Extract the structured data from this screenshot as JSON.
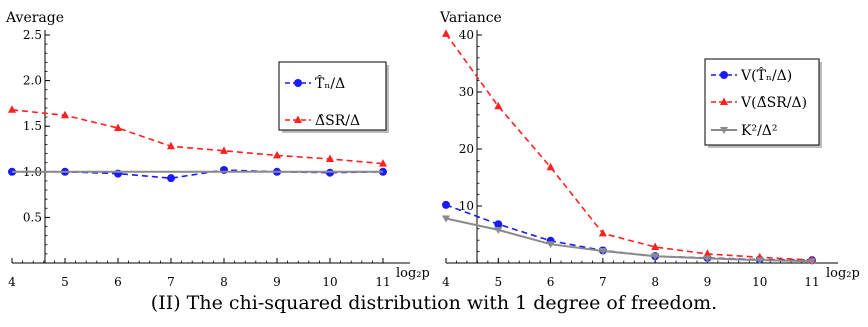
{
  "caption": "(II) The chi-squared distribution with 1 degree of freedom.",
  "chart_data": [
    {
      "type": "line",
      "title": "Average",
      "xlabel": "log₂p",
      "ylabel": "",
      "x": [
        4,
        5,
        6,
        7,
        8,
        9,
        10,
        11
      ],
      "xticks": [
        "4",
        "5",
        "6",
        "7",
        "8",
        "9",
        "10",
        "11"
      ],
      "xlim": [
        4,
        11
      ],
      "ylim": [
        0.0,
        2.5
      ],
      "yticks": [
        0.5,
        1.0,
        1.5,
        2.0,
        2.5
      ],
      "ytick_labels": [
        "0.5",
        "1.0",
        "1.5",
        "2.0",
        "2.5"
      ],
      "legend_position": "right",
      "series": [
        {
          "name": "T̂ₙ/Δ",
          "color": "#1a1aff",
          "marker": "circle",
          "values": [
            1.0,
            1.0,
            0.98,
            0.93,
            1.02,
            1.0,
            0.99,
            1.0
          ]
        },
        {
          "name": "Δ̂SR/Δ",
          "color": "#ff2020",
          "marker": "triangle-up",
          "values": [
            1.68,
            1.62,
            1.48,
            1.28,
            1.23,
            1.18,
            1.14,
            1.09
          ]
        },
        {
          "name": "",
          "color": "#8a8a8a",
          "marker": "none",
          "values": [
            1.0,
            1.0,
            1.0,
            1.0,
            1.0,
            1.0,
            1.0,
            1.0
          ]
        }
      ]
    },
    {
      "type": "line",
      "title": "Variance",
      "xlabel": "log₂p",
      "ylabel": "",
      "x": [
        4,
        5,
        6,
        7,
        8,
        9,
        10,
        11
      ],
      "xticks": [
        "4",
        "5",
        "6",
        "7",
        "8",
        "9",
        "10",
        "11"
      ],
      "xlim": [
        4,
        11
      ],
      "ylim": [
        0,
        40
      ],
      "yticks": [
        10,
        20,
        30,
        40
      ],
      "ytick_labels": [
        "10",
        "20",
        "30",
        "40"
      ],
      "legend_position": "right",
      "series": [
        {
          "name": "V(T̂ₙ/Δ)",
          "color": "#1a1aff",
          "marker": "circle",
          "values": [
            10.2,
            6.8,
            3.9,
            2.2,
            1.2,
            0.9,
            0.6,
            0.5
          ]
        },
        {
          "name": "V(Δ̂SR/Δ)",
          "color": "#ff2020",
          "marker": "triangle-up",
          "values": [
            40.2,
            27.5,
            16.8,
            5.2,
            2.8,
            1.6,
            1.0,
            0.5
          ]
        },
        {
          "name": "K²/Δ²",
          "color": "#8a8a8a",
          "marker": "triangle-down",
          "values": [
            7.8,
            5.8,
            3.3,
            2.1,
            1.2,
            0.8,
            0.5,
            0.3
          ]
        }
      ]
    }
  ]
}
